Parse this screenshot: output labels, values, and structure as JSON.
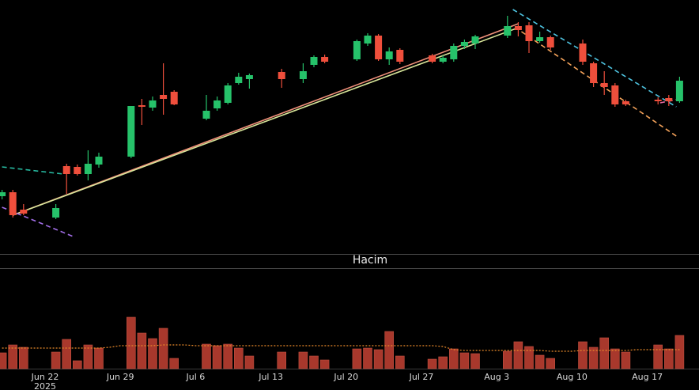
{
  "chart_data": {
    "type": "candlestick",
    "categories": [
      null,
      null,
      null,
      null,
      "Jun 22",
      null,
      null,
      null,
      null,
      null,
      null,
      "Jun 29",
      null,
      null,
      null,
      null,
      null,
      null,
      "Jul 6",
      null,
      null,
      null,
      null,
      null,
      null,
      "Jul 13",
      null,
      null,
      null,
      null,
      null,
      null,
      "Jul 20",
      null,
      null,
      null,
      null,
      null,
      null,
      "Jul 27",
      null,
      null,
      null,
      null,
      null,
      null,
      "Aug 3",
      null,
      null,
      null,
      null,
      null,
      null,
      "Aug 10",
      null,
      null,
      null,
      null,
      null,
      null,
      "Aug 17",
      null,
      null,
      null
    ],
    "year_label": "2025",
    "year_label_at": 4,
    "open": [
      72,
      77,
      55,
      null,
      null,
      45,
      110,
      109,
      100,
      112,
      null,
      null,
      122,
      187,
      184,
      200,
      204,
      null,
      null,
      170,
      183,
      190,
      215,
      220,
      null,
      null,
      229,
      null,
      220,
      238,
      248,
      null,
      null,
      245,
      265,
      275,
      245,
      257,
      null,
      null,
      250,
      242,
      245,
      262,
      265,
      null,
      null,
      275,
      287,
      288,
      268,
      273,
      null,
      null,
      265,
      240,
      215,
      212,
      192,
      null,
      null,
      194,
      196,
      192
    ],
    "high": [
      80,
      80,
      62,
      null,
      null,
      62,
      113,
      112,
      130,
      127,
      null,
      null,
      186,
      195,
      198,
      240,
      206,
      null,
      null,
      200,
      198,
      215,
      228,
      227,
      null,
      null,
      233,
      null,
      240,
      250,
      251,
      null,
      null,
      270,
      278,
      277,
      260,
      259,
      null,
      null,
      252,
      250,
      265,
      270,
      276,
      null,
      null,
      300,
      292,
      292,
      280,
      275,
      null,
      null,
      270,
      242,
      230,
      215,
      194,
      null,
      null,
      197,
      200,
      223
    ],
    "low": [
      68,
      45,
      48,
      null,
      null,
      43,
      75,
      98,
      92,
      108,
      null,
      null,
      120,
      162,
      180,
      175,
      187,
      null,
      null,
      168,
      180,
      188,
      213,
      208,
      null,
      null,
      209,
      null,
      215,
      235,
      240,
      null,
      null,
      243,
      262,
      243,
      238,
      239,
      null,
      null,
      240,
      240,
      242,
      258,
      258,
      null,
      null,
      272,
      274,
      253,
      266,
      257,
      null,
      null,
      238,
      210,
      200,
      185,
      186,
      null,
      null,
      188,
      186,
      190
    ],
    "close": [
      77,
      48,
      50,
      null,
      null,
      57,
      100,
      100,
      113,
      122,
      null,
      null,
      186,
      185,
      193,
      195,
      188,
      null,
      null,
      180,
      193,
      212,
      223,
      225,
      null,
      null,
      220,
      null,
      230,
      248,
      242,
      null,
      null,
      268,
      275,
      245,
      255,
      242,
      null,
      null,
      242,
      247,
      262,
      267,
      274,
      null,
      null,
      287,
      282,
      268,
      273,
      260,
      null,
      null,
      242,
      215,
      210,
      188,
      188,
      null,
      null,
      192,
      192,
      218
    ],
    "up_color": "#26c26a",
    "down_color": "#ef4f3c",
    "ylim": [
      0,
      320
    ],
    "drawings": [
      {
        "x": [
          1,
          48
        ],
        "y": [
          48,
          290
        ],
        "color": "#f0907a",
        "dashed": false
      },
      {
        "x": [
          1,
          48
        ],
        "y": [
          48,
          285
        ],
        "color": "#d8e69a",
        "dashed": false
      },
      {
        "x": [
          0,
          5.7
        ],
        "y": [
          109,
          100
        ],
        "color": "#27b9a0",
        "dashed": true
      },
      {
        "x": [
          0,
          6.8
        ],
        "y": [
          58,
          20
        ],
        "color": "#a26ee8",
        "dashed": true
      },
      {
        "x": [
          47.5,
          62.7
        ],
        "y": [
          308,
          185
        ],
        "color": "#4ec3e0",
        "dashed": true
      },
      {
        "x": [
          48.3,
          62.7
        ],
        "y": [
          280,
          148
        ],
        "color": "#f5a35a",
        "dashed": true
      },
      {
        "x": [
          61.2,
          62.7
        ],
        "y": [
          190,
          194
        ],
        "color": "#e86aa0",
        "dashed": true
      }
    ],
    "volume_title": "Hacim",
    "volume": [
      20,
      30,
      27,
      null,
      null,
      21,
      37,
      10,
      30,
      26,
      null,
      null,
      65,
      45,
      38,
      51,
      13,
      null,
      null,
      31,
      29,
      31,
      26,
      16,
      null,
      null,
      21,
      null,
      21,
      16,
      11,
      null,
      null,
      25,
      26,
      24,
      47,
      16,
      null,
      null,
      12,
      15,
      25,
      20,
      19,
      null,
      null,
      22,
      34,
      28,
      17,
      13,
      null,
      null,
      34,
      27,
      39,
      25,
      21,
      null,
      null,
      30,
      25,
      42
    ],
    "volume_color": "#a8382c",
    "volume_ma": [
      26,
      26,
      26,
      26,
      26,
      26,
      26,
      26,
      26,
      26,
      27,
      29,
      29,
      29,
      29,
      30,
      30,
      30,
      29,
      29,
      29,
      29,
      29,
      29,
      29,
      29,
      29,
      29,
      29,
      29,
      29,
      29,
      29,
      29,
      29,
      29,
      29,
      29,
      29,
      29,
      29,
      28,
      24,
      23,
      23,
      23,
      23,
      23,
      23,
      23,
      23,
      22,
      22,
      22,
      23,
      23,
      23,
      23,
      23,
      24,
      24,
      24,
      24,
      24
    ],
    "volume_ma_color": "#e8892a",
    "vlim": [
      0,
      126
    ]
  }
}
